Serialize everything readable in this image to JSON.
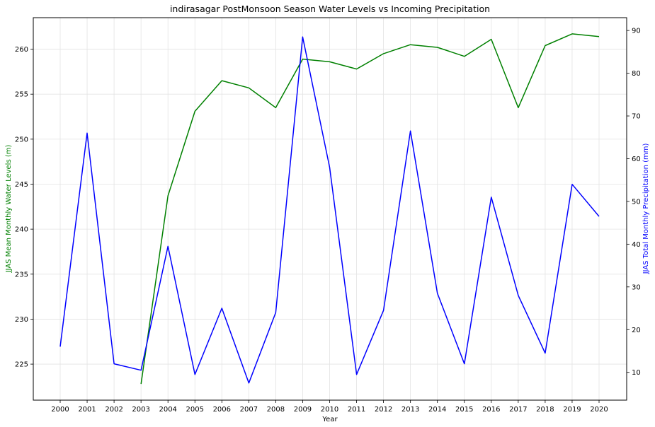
{
  "chart_data": {
    "type": "line",
    "title": "indirasagar PostMonsoon Season Water Levels vs Incoming Precipitation",
    "xlabel": "Year",
    "ylabel_left": "JJAS Mean Monthly Water Levels (m)",
    "ylabel_right": "JJAS Total Monthly Precipitation (mm)",
    "x": [
      2000,
      2001,
      2002,
      2003,
      2004,
      2005,
      2006,
      2007,
      2008,
      2009,
      2010,
      2011,
      2012,
      2013,
      2014,
      2015,
      2016,
      2017,
      2018,
      2019,
      2020
    ],
    "x_ticks": [
      "2000",
      "2001",
      "2002",
      "2003",
      "2004",
      "2005",
      "2006",
      "2007",
      "2008",
      "2009",
      "2010",
      "2011",
      "2012",
      "2013",
      "2014",
      "2015",
      "2016",
      "2017",
      "2018",
      "2019",
      "2020"
    ],
    "ylim_left": [
      221.0,
      263.5
    ],
    "ylim_right": [
      3.5,
      93.0
    ],
    "yticks_left": [
      225,
      230,
      235,
      240,
      245,
      250,
      255,
      260
    ],
    "yticks_right": [
      10,
      20,
      30,
      40,
      50,
      60,
      70,
      80,
      90
    ],
    "grid": true,
    "series": [
      {
        "axis": "left",
        "color": "#008000",
        "x": [
          2003,
          2004,
          2005,
          2006,
          2007,
          2008,
          2009,
          2010,
          2011,
          2012,
          2013,
          2014,
          2015,
          2016,
          2017,
          2018,
          2019,
          2020
        ],
        "values": [
          222.8,
          243.7,
          253.1,
          256.5,
          255.7,
          253.5,
          258.9,
          258.6,
          257.8,
          259.5,
          260.5,
          260.2,
          259.2,
          261.1,
          253.5,
          260.4,
          261.7,
          261.4
        ]
      },
      {
        "axis": "right",
        "color": "#0000ff",
        "x": [
          2000,
          2001,
          2002,
          2003,
          2004,
          2005,
          2006,
          2007,
          2008,
          2009,
          2010,
          2011,
          2012,
          2013,
          2014,
          2015,
          2016,
          2017,
          2018,
          2019,
          2020
        ],
        "values": [
          16.0,
          66.0,
          12.0,
          10.5,
          39.5,
          9.5,
          25.0,
          7.5,
          24.0,
          88.5,
          58.0,
          9.5,
          24.5,
          66.5,
          28.5,
          12.0,
          51.0,
          28.0,
          14.5,
          54.0,
          46.5
        ]
      }
    ]
  }
}
